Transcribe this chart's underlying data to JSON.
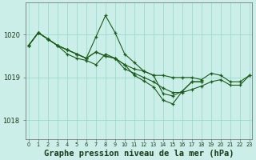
{
  "background_color": "#cceee8",
  "grid_color": "#99ddcc",
  "line_color": "#1a5c1a",
  "marker_color": "#1a5c1a",
  "xlabel": "Graphe pression niveau de la mer (hPa)",
  "xlabel_fontsize": 7.5,
  "yticks": [
    1018,
    1019,
    1020
  ],
  "xticks": [
    0,
    1,
    2,
    3,
    4,
    5,
    6,
    7,
    8,
    9,
    10,
    11,
    12,
    13,
    14,
    15,
    16,
    17,
    18,
    19,
    20,
    21,
    22,
    23
  ],
  "ylim": [
    1017.55,
    1020.75
  ],
  "xlim": [
    -0.3,
    23.3
  ],
  "series": [
    [
      1019.75,
      1020.05,
      1019.9,
      1019.75,
      1019.65,
      1019.55,
      1019.45,
      1019.6,
      1019.5,
      1019.45,
      1019.3,
      1019.2,
      1019.15,
      1019.05,
      1019.05,
      1019.0,
      1019.0,
      1019.0,
      1018.95,
      1019.1,
      1019.05,
      1018.9,
      1018.9,
      1019.05
    ],
    [
      1019.75,
      1020.05,
      1019.9,
      1019.75,
      1019.55,
      1019.45,
      1019.4,
      1019.3,
      1019.55,
      1019.45,
      1019.2,
      1019.1,
      1019.0,
      1018.9,
      1018.75,
      1018.65,
      1018.65,
      1018.72,
      1018.8,
      1018.9,
      1018.95,
      1018.82,
      1018.82,
      1019.05
    ],
    [
      1019.75,
      1020.05,
      1019.9,
      1019.75,
      1019.65,
      1019.55,
      1019.45,
      1019.95,
      1020.45,
      1020.05,
      1019.55,
      1019.35,
      1019.15,
      1019.05,
      1018.62,
      1018.57,
      1018.68,
      1018.9,
      1018.9,
      null,
      null,
      null,
      null,
      null
    ],
    [
      1019.75,
      1020.05,
      1019.9,
      1019.75,
      1019.65,
      1019.55,
      1019.45,
      1019.6,
      1019.5,
      1019.45,
      1019.3,
      1019.05,
      1018.92,
      1018.78,
      1018.47,
      1018.38,
      1018.68,
      1018.9,
      1018.9,
      null,
      null,
      null,
      null,
      null
    ]
  ]
}
